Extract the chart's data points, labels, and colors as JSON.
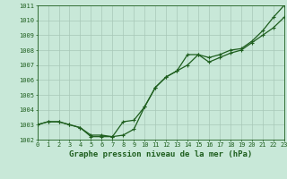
{
  "title": "Graphe pression niveau de la mer (hPa)",
  "x_hours": [
    0,
    1,
    2,
    3,
    4,
    5,
    6,
    7,
    8,
    9,
    10,
    11,
    12,
    13,
    14,
    15,
    16,
    17,
    18,
    19,
    20,
    21,
    22,
    23
  ],
  "line1": [
    1003.0,
    1003.2,
    1003.2,
    1003.0,
    1002.8,
    1002.2,
    1002.2,
    1002.2,
    1002.3,
    1002.7,
    1004.2,
    1005.5,
    1006.2,
    1006.6,
    1007.0,
    1007.7,
    1007.2,
    1007.5,
    1007.8,
    1008.0,
    1008.5,
    1009.0,
    1009.5,
    1010.2
  ],
  "line2": [
    1003.0,
    1003.2,
    1003.2,
    1003.0,
    1002.8,
    1002.3,
    1002.3,
    1002.2,
    1003.2,
    1003.3,
    1004.2,
    1005.5,
    1006.2,
    1006.6,
    1007.7,
    1007.7,
    1007.5,
    1007.7,
    1008.0,
    1008.1,
    1008.6,
    1009.3,
    1010.2,
    1011.0
  ],
  "ylim": [
    1002,
    1011
  ],
  "yticks": [
    1002,
    1003,
    1004,
    1005,
    1006,
    1007,
    1008,
    1009,
    1010,
    1011
  ],
  "xlim": [
    0,
    23
  ],
  "xticks": [
    0,
    1,
    2,
    3,
    4,
    5,
    6,
    7,
    8,
    9,
    10,
    11,
    12,
    13,
    14,
    15,
    16,
    17,
    18,
    19,
    20,
    21,
    22,
    23
  ],
  "line_color": "#1e5e1e",
  "bg_color": "#c8e8d8",
  "grid_color": "#a8c8b8",
  "label_color": "#1e5e1e",
  "title_color": "#1e5e1e",
  "title_fontsize": 6.5,
  "tick_fontsize": 5.0,
  "line_width": 0.9,
  "marker_size": 3.0
}
